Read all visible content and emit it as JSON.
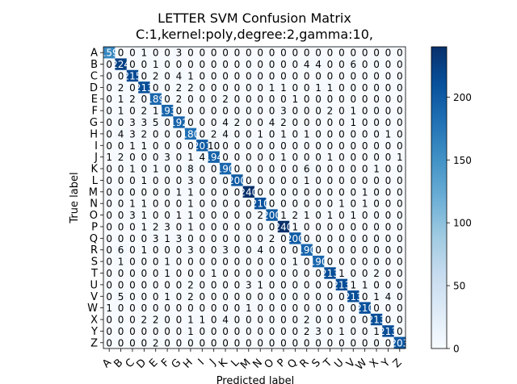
{
  "chart_data": {
    "type": "heatmap",
    "title": "LETTER SVM Confusion Matrix",
    "subtitle": "C:1,kernel:poly,degree:2,gamma:10,",
    "xlabel": "Predicted label",
    "ylabel": "True label",
    "labels": [
      "A",
      "B",
      "C",
      "D",
      "E",
      "F",
      "G",
      "H",
      "I",
      "J",
      "K",
      "L",
      "M",
      "N",
      "O",
      "P",
      "Q",
      "R",
      "S",
      "T",
      "U",
      "V",
      "W",
      "X",
      "Y",
      "Z"
    ],
    "matrix": [
      [
        159,
        0,
        0,
        1,
        0,
        0,
        3,
        0,
        0,
        0,
        0,
        0,
        0,
        0,
        0,
        0,
        0,
        0,
        0,
        0,
        0,
        0,
        0,
        0,
        0,
        0
      ],
      [
        0,
        224,
        0,
        0,
        1,
        0,
        0,
        0,
        0,
        0,
        0,
        0,
        0,
        0,
        0,
        0,
        0,
        4,
        4,
        0,
        0,
        6,
        0,
        0,
        0,
        0
      ],
      [
        0,
        0,
        215,
        0,
        2,
        0,
        4,
        1,
        0,
        0,
        0,
        0,
        0,
        0,
        0,
        0,
        0,
        0,
        0,
        0,
        0,
        0,
        0,
        0,
        0,
        0
      ],
      [
        0,
        2,
        0,
        213,
        0,
        0,
        2,
        2,
        0,
        0,
        0,
        0,
        0,
        0,
        1,
        1,
        0,
        0,
        1,
        1,
        0,
        0,
        0,
        0,
        0,
        0
      ],
      [
        0,
        1,
        2,
        0,
        189,
        0,
        2,
        0,
        0,
        0,
        2,
        0,
        0,
        0,
        0,
        0,
        1,
        0,
        0,
        0,
        0,
        0,
        0,
        0,
        0,
        0
      ],
      [
        0,
        1,
        0,
        2,
        1,
        193,
        0,
        0,
        0,
        0,
        0,
        0,
        0,
        0,
        0,
        3,
        0,
        0,
        0,
        2,
        0,
        1,
        0,
        0,
        0,
        0
      ],
      [
        0,
        0,
        3,
        3,
        5,
        0,
        192,
        0,
        0,
        0,
        4,
        2,
        0,
        0,
        4,
        2,
        0,
        0,
        0,
        0,
        0,
        1,
        0,
        0,
        0,
        0
      ],
      [
        0,
        4,
        3,
        2,
        0,
        0,
        0,
        180,
        0,
        2,
        4,
        0,
        0,
        1,
        0,
        1,
        0,
        1,
        0,
        0,
        0,
        0,
        0,
        0,
        1,
        0
      ],
      [
        0,
        0,
        1,
        1,
        0,
        0,
        0,
        0,
        201,
        10,
        0,
        0,
        0,
        0,
        0,
        0,
        0,
        0,
        0,
        0,
        0,
        0,
        0,
        0,
        0,
        0
      ],
      [
        1,
        2,
        0,
        0,
        0,
        3,
        0,
        1,
        4,
        194,
        0,
        0,
        0,
        0,
        0,
        1,
        0,
        0,
        0,
        1,
        0,
        0,
        0,
        0,
        0,
        1
      ],
      [
        0,
        0,
        1,
        0,
        1,
        0,
        0,
        8,
        0,
        0,
        190,
        0,
        0,
        0,
        0,
        0,
        0,
        6,
        0,
        0,
        0,
        0,
        0,
        1,
        0,
        0
      ],
      [
        0,
        0,
        0,
        1,
        0,
        0,
        0,
        3,
        0,
        0,
        0,
        200,
        0,
        0,
        0,
        0,
        0,
        1,
        0,
        0,
        0,
        0,
        0,
        0,
        0,
        0
      ],
      [
        0,
        0,
        0,
        0,
        0,
        0,
        1,
        1,
        0,
        0,
        0,
        0,
        240,
        0,
        0,
        0,
        0,
        0,
        0,
        0,
        0,
        0,
        1,
        0,
        0,
        0
      ],
      [
        0,
        0,
        1,
        1,
        0,
        0,
        0,
        1,
        0,
        0,
        0,
        0,
        0,
        210,
        0,
        0,
        0,
        0,
        0,
        0,
        1,
        0,
        1,
        0,
        0,
        0
      ],
      [
        0,
        0,
        3,
        1,
        0,
        0,
        1,
        1,
        0,
        0,
        0,
        0,
        0,
        2,
        200,
        1,
        2,
        1,
        0,
        1,
        0,
        1,
        0,
        0,
        0,
        0
      ],
      [
        0,
        0,
        0,
        1,
        2,
        3,
        0,
        1,
        0,
        0,
        0,
        0,
        0,
        0,
        0,
        240,
        1,
        0,
        0,
        0,
        0,
        0,
        0,
        0,
        0,
        0
      ],
      [
        0,
        0,
        0,
        0,
        3,
        1,
        3,
        0,
        0,
        0,
        0,
        0,
        0,
        0,
        2,
        0,
        200,
        0,
        0,
        0,
        0,
        0,
        0,
        0,
        0,
        0
      ],
      [
        0,
        6,
        0,
        1,
        0,
        0,
        0,
        3,
        0,
        0,
        3,
        0,
        0,
        4,
        0,
        0,
        0,
        190,
        0,
        0,
        0,
        0,
        0,
        0,
        0,
        0
      ],
      [
        0,
        1,
        0,
        0,
        0,
        1,
        0,
        0,
        0,
        0,
        0,
        0,
        0,
        0,
        0,
        0,
        1,
        0,
        190,
        0,
        0,
        0,
        0,
        0,
        0,
        0
      ],
      [
        0,
        0,
        0,
        0,
        0,
        1,
        0,
        0,
        0,
        1,
        0,
        0,
        0,
        0,
        0,
        0,
        0,
        0,
        0,
        213,
        1,
        0,
        0,
        2,
        0,
        0
      ],
      [
        0,
        0,
        0,
        0,
        0,
        0,
        0,
        2,
        0,
        0,
        0,
        0,
        3,
        1,
        0,
        0,
        0,
        0,
        0,
        0,
        213,
        1,
        1,
        0,
        0,
        0
      ],
      [
        0,
        5,
        0,
        0,
        0,
        1,
        0,
        2,
        0,
        0,
        0,
        0,
        0,
        0,
        0,
        0,
        0,
        0,
        0,
        0,
        0,
        213,
        0,
        1,
        4,
        0
      ],
      [
        1,
        0,
        0,
        0,
        0,
        0,
        0,
        0,
        0,
        0,
        0,
        0,
        1,
        0,
        0,
        0,
        0,
        0,
        0,
        0,
        0,
        0,
        210,
        0,
        0,
        0
      ],
      [
        0,
        0,
        0,
        2,
        2,
        0,
        0,
        1,
        1,
        0,
        4,
        0,
        0,
        0,
        0,
        0,
        0,
        2,
        0,
        0,
        0,
        0,
        0,
        213,
        0,
        0
      ],
      [
        0,
        0,
        0,
        0,
        0,
        0,
        0,
        1,
        0,
        0,
        0,
        0,
        0,
        0,
        0,
        0,
        0,
        2,
        3,
        0,
        1,
        0,
        0,
        1,
        213,
        0
      ],
      [
        0,
        0,
        0,
        0,
        2,
        0,
        0,
        0,
        0,
        0,
        0,
        0,
        0,
        0,
        0,
        0,
        0,
        0,
        0,
        0,
        0,
        0,
        0,
        0,
        0,
        203
      ]
    ],
    "colorbar": {
      "ticks": [
        0,
        50,
        100,
        150,
        200
      ],
      "range": [
        0,
        240
      ],
      "colormap": "Blues"
    }
  }
}
